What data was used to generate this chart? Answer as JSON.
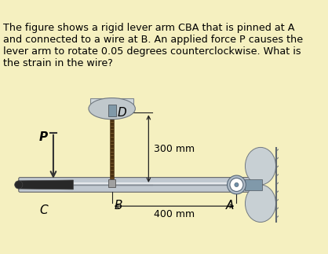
{
  "bg_color": "#f5f0c0",
  "text_color": "#000000",
  "title_text": "The figure shows a rigid lever arm CBA that is pinned at A\nand connected to a wire at B. An applied force P causes the\nlever arm to rotate 0.05 degrees counterclockwise. What is\nthe strain in the wire?",
  "title_fontsize": 9.2,
  "label_C": "C",
  "label_B": "B",
  "label_A": "A",
  "label_D": "D",
  "label_P": "P",
  "dim_300": "300 mm",
  "dim_400": "400 mm",
  "arrow_color": "#333333",
  "lever_color_light": "#c0c8d0",
  "lever_color_dark": "#808890",
  "wire_color_dark": "#4a3010",
  "wire_color_light": "#806030",
  "grip_color": "#282828",
  "pin_color": "#8899aa",
  "wall_color": "#aabbcc",
  "cap_dome_color": "#c0c8cc",
  "cap_neck_color": "#7090a0",
  "dim_line_color": "#222222"
}
